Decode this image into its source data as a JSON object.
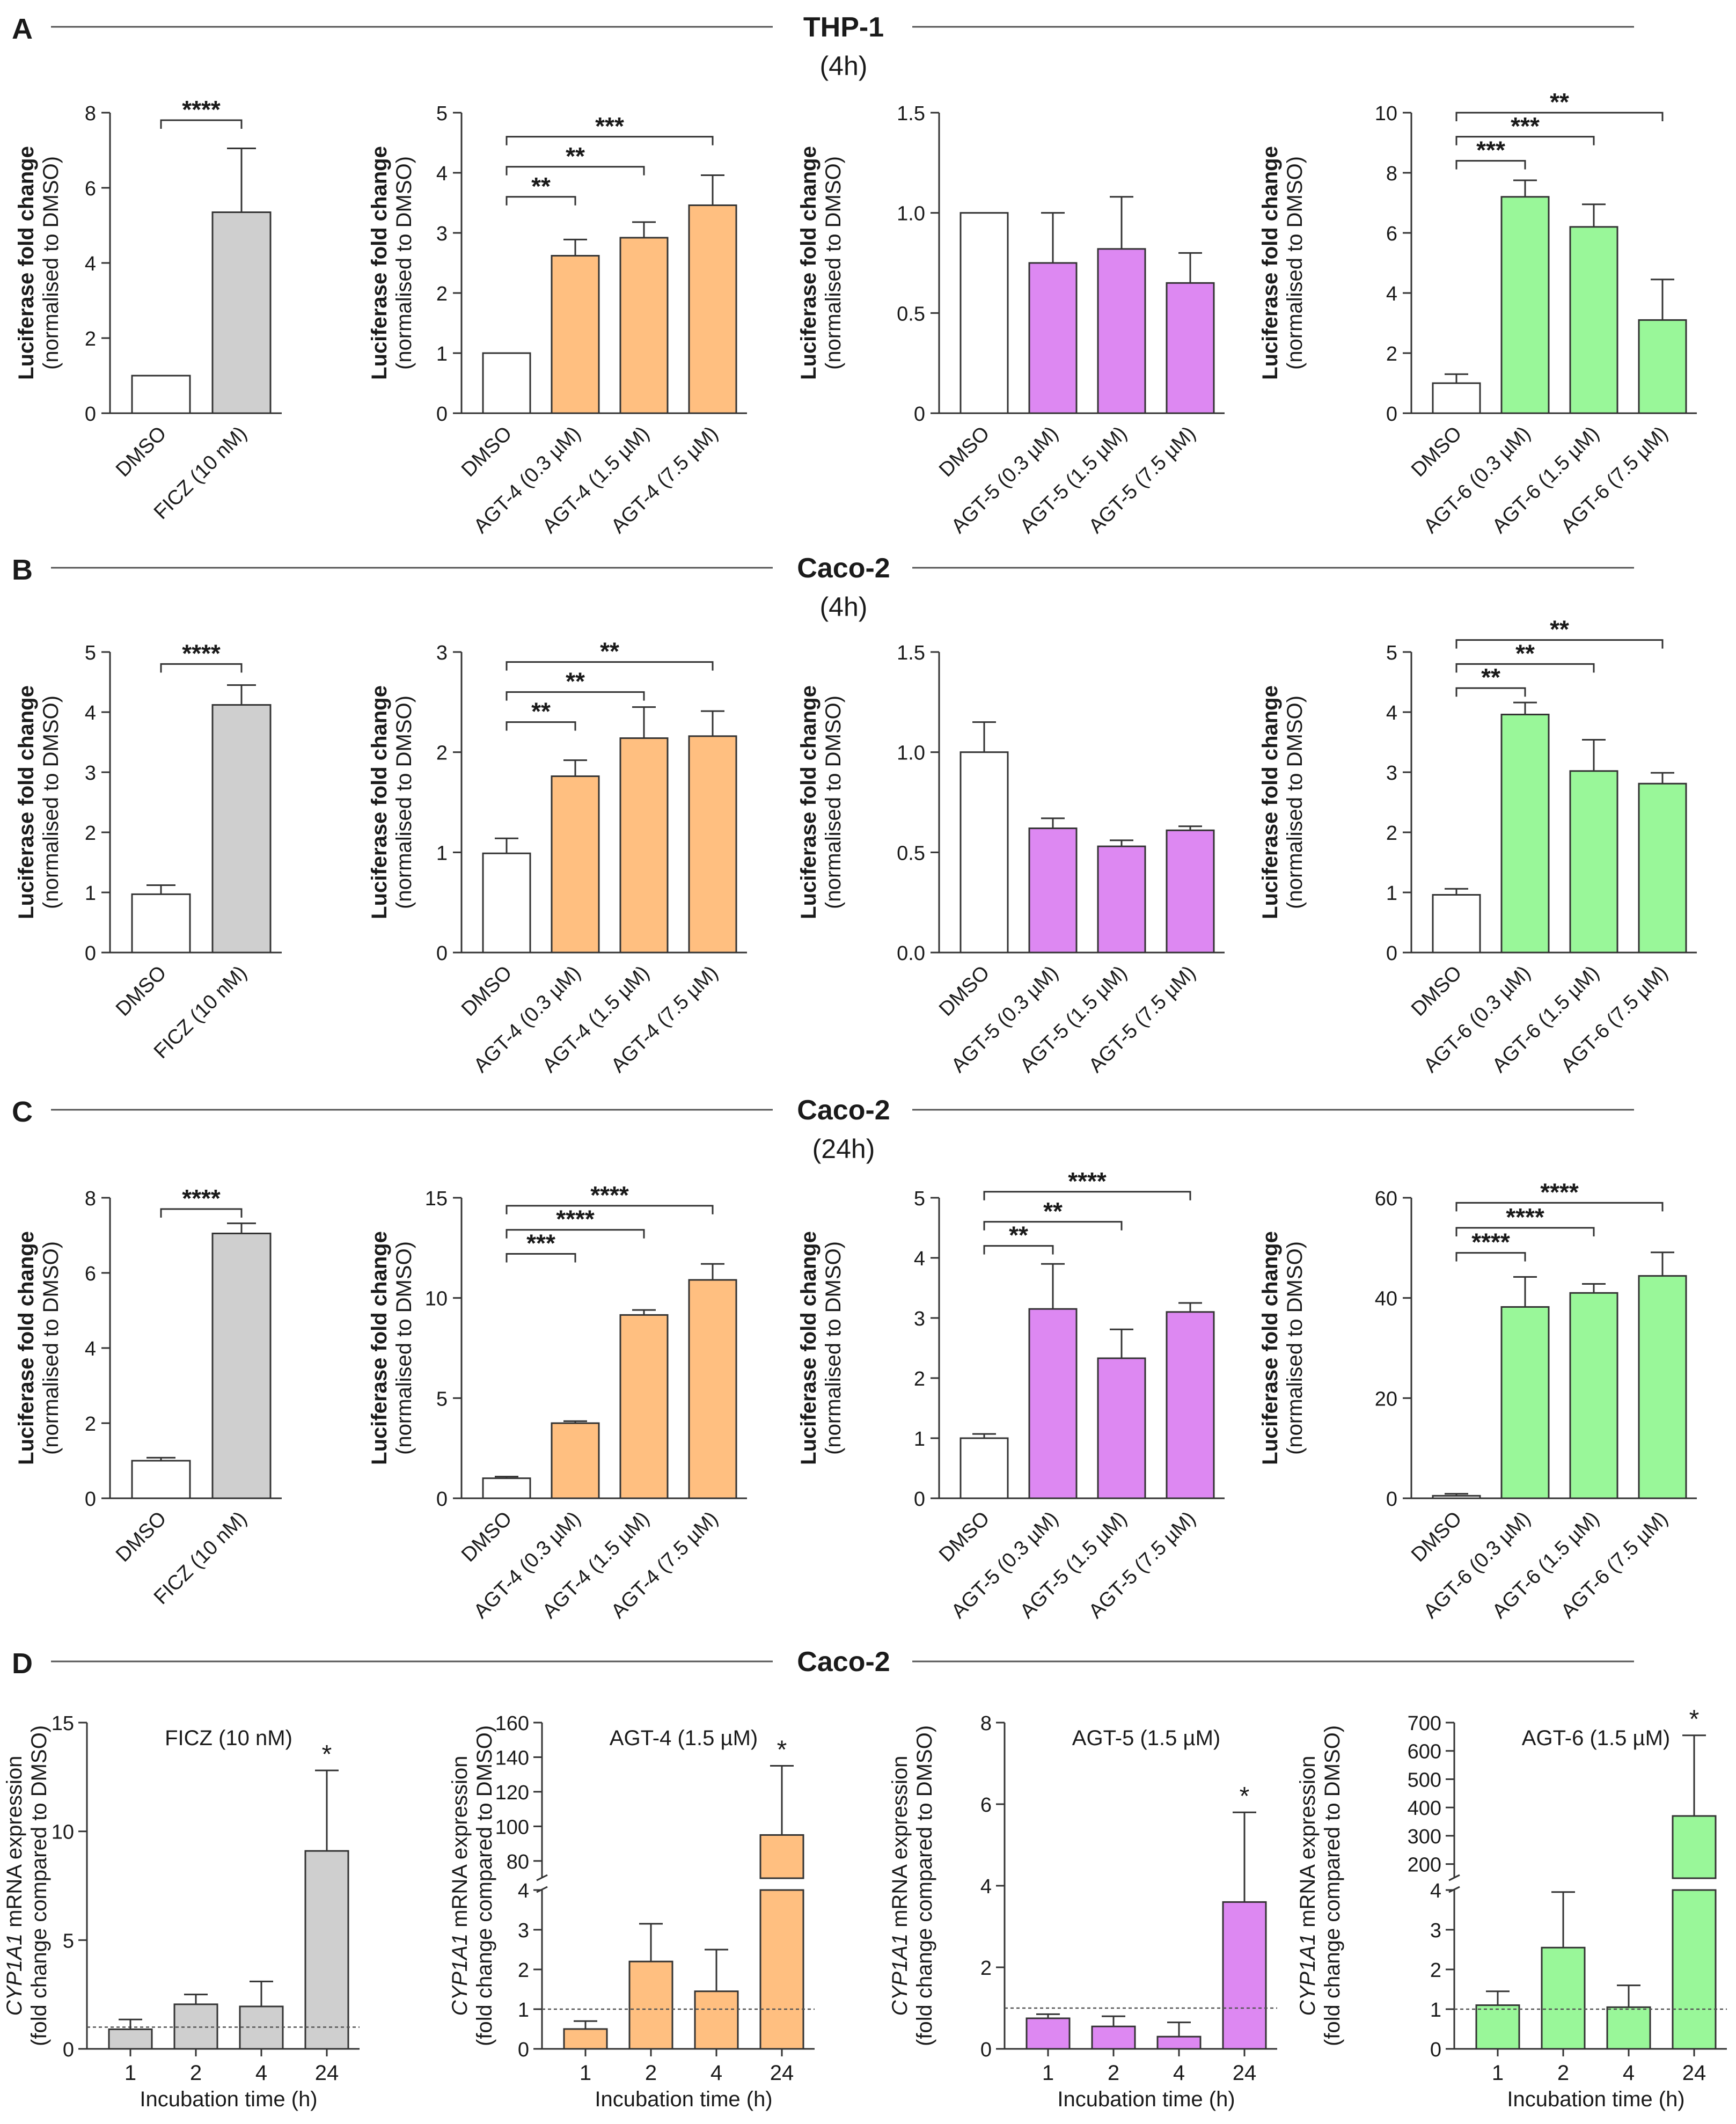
{
  "figure": {
    "rows": [
      {
        "letter": "A",
        "title": "THP-1",
        "subtitle": "(4h)"
      },
      {
        "letter": "B",
        "title": "Caco-2",
        "subtitle": "(4h)"
      },
      {
        "letter": "C",
        "title": "Caco-2",
        "subtitle": "(24h)"
      },
      {
        "letter": "D",
        "title": "Caco-2",
        "subtitle": ""
      }
    ],
    "ylabel_line1": "Luciferase fold change",
    "ylabel_line2": "(normalised to DMSO)",
    "d_ylabel_line1_gene": "CYP1A1",
    "d_ylabel_line1_rest": " mRNA expression",
    "d_ylabel_line2": "(fold change compared to DMSO)",
    "d_xlabel": "Incubation time (h)",
    "colors": {
      "white": "#ffffff",
      "gray": "#cfcfcf",
      "orange": "#ffbf80",
      "purple": "#dd88f2",
      "green": "#99f799",
      "stroke": "#333333"
    }
  },
  "chart_data": [
    {
      "id": "A1",
      "type": "bar",
      "categories": [
        "DMSO",
        "FICZ (10 nM)"
      ],
      "values": [
        1.0,
        5.35
      ],
      "errors": [
        0,
        1.7
      ],
      "fills": [
        "white",
        "gray"
      ],
      "ylim": [
        0,
        8
      ],
      "yticks": [
        "0",
        "2",
        "4",
        "6",
        "8"
      ],
      "tick_values": [
        0,
        2,
        4,
        6,
        8
      ],
      "ylabel": "Luciferase fold change (normalised to DMSO)",
      "sig": [
        {
          "from": 0,
          "to": 1,
          "label": "****",
          "y": 7.8
        }
      ]
    },
    {
      "id": "A2",
      "type": "bar",
      "categories": [
        "DMSO",
        "AGT-4 (0.3 µM)",
        "AGT-4 (1.5 µM)",
        "AGT-4 (7.5 µM)"
      ],
      "values": [
        1.0,
        2.62,
        2.92,
        3.46
      ],
      "errors": [
        0,
        0.27,
        0.26,
        0.5
      ],
      "fills": [
        "white",
        "orange",
        "orange",
        "orange"
      ],
      "ylim": [
        0,
        5
      ],
      "yticks": [
        "0",
        "1",
        "2",
        "3",
        "4",
        "5"
      ],
      "tick_values": [
        0,
        1,
        2,
        3,
        4,
        5
      ],
      "ylabel": "Luciferase fold change (normalised to DMSO)",
      "sig": [
        {
          "from": 0,
          "to": 1,
          "label": "**",
          "y": 3.6
        },
        {
          "from": 0,
          "to": 2,
          "label": "**",
          "y": 4.1
        },
        {
          "from": 0,
          "to": 3,
          "label": "***",
          "y": 4.6
        }
      ]
    },
    {
      "id": "A3",
      "type": "bar",
      "categories": [
        "DMSO",
        "AGT-5 (0.3 µM)",
        "AGT-5 (1.5 µM)",
        "AGT-5 (7.5 µM)"
      ],
      "values": [
        1.0,
        0.75,
        0.82,
        0.65
      ],
      "errors": [
        0,
        0.25,
        0.26,
        0.15
      ],
      "fills": [
        "white",
        "purple",
        "purple",
        "purple"
      ],
      "ylim": [
        0,
        1.5
      ],
      "yticks": [
        "0",
        "0.5",
        "1.0",
        "1.5"
      ],
      "tick_values": [
        0,
        0.5,
        1.0,
        1.5
      ],
      "ylabel": "Luciferase fold change (normalised to DMSO)",
      "sig": []
    },
    {
      "id": "A4",
      "type": "bar",
      "categories": [
        "DMSO",
        "AGT-6 (0.3 µM)",
        "AGT-6 (1.5 µM)",
        "AGT-6 (7.5 µM)"
      ],
      "values": [
        1.0,
        7.2,
        6.2,
        3.1
      ],
      "errors": [
        0.3,
        0.55,
        0.75,
        1.35
      ],
      "fills": [
        "white",
        "green",
        "green",
        "green"
      ],
      "ylim": [
        0,
        10
      ],
      "yticks": [
        "0",
        "2",
        "4",
        "6",
        "8",
        "10"
      ],
      "tick_values": [
        0,
        2,
        4,
        6,
        8,
        10
      ],
      "ylabel": "Luciferase fold change (normalised to DMSO)",
      "sig": [
        {
          "from": 0,
          "to": 1,
          "label": "***",
          "y": 8.4
        },
        {
          "from": 0,
          "to": 2,
          "label": "***",
          "y": 9.2
        },
        {
          "from": 0,
          "to": 3,
          "label": "**",
          "y": 10.0
        }
      ]
    },
    {
      "id": "B1",
      "type": "bar",
      "categories": [
        "DMSO",
        "FICZ (10 nM)"
      ],
      "values": [
        0.97,
        4.12
      ],
      "errors": [
        0.15,
        0.33
      ],
      "fills": [
        "white",
        "gray"
      ],
      "ylim": [
        0,
        5
      ],
      "yticks": [
        "0",
        "1",
        "2",
        "3",
        "4",
        "5"
      ],
      "tick_values": [
        0,
        1,
        2,
        3,
        4,
        5
      ],
      "ylabel": "Luciferase fold change (normalised to DMSO)",
      "sig": [
        {
          "from": 0,
          "to": 1,
          "label": "****",
          "y": 4.8
        }
      ]
    },
    {
      "id": "B2",
      "type": "bar",
      "categories": [
        "DMSO",
        "AGT-4 (0.3 µM)",
        "AGT-4 (1.5 µM)",
        "AGT-4 (7.5 µM)"
      ],
      "values": [
        0.99,
        1.76,
        2.14,
        2.16
      ],
      "errors": [
        0.15,
        0.16,
        0.31,
        0.25
      ],
      "fills": [
        "white",
        "orange",
        "orange",
        "orange"
      ],
      "ylim": [
        0,
        3
      ],
      "yticks": [
        "0",
        "1",
        "2",
        "3"
      ],
      "tick_values": [
        0,
        1,
        2,
        3
      ],
      "ylabel": "Luciferase fold change (normalised to DMSO)",
      "sig": [
        {
          "from": 0,
          "to": 1,
          "label": "**",
          "y": 2.3
        },
        {
          "from": 0,
          "to": 2,
          "label": "**",
          "y": 2.6
        },
        {
          "from": 0,
          "to": 3,
          "label": "**",
          "y": 2.9
        }
      ]
    },
    {
      "id": "B3",
      "type": "bar",
      "categories": [
        "DMSO",
        "AGT-5 (0.3 µM)",
        "AGT-5 (1.5 µM)",
        "AGT-5 (7.5 µM)"
      ],
      "values": [
        1.0,
        0.62,
        0.53,
        0.61
      ],
      "errors": [
        0.15,
        0.05,
        0.03,
        0.02
      ],
      "fills": [
        "white",
        "purple",
        "purple",
        "purple"
      ],
      "ylim": [
        0,
        1.5
      ],
      "yticks": [
        "0.0",
        "0.5",
        "1.0",
        "1.5"
      ],
      "tick_values": [
        0,
        0.5,
        1.0,
        1.5
      ],
      "ylabel": "Luciferase fold change (normalised to DMSO)",
      "sig": []
    },
    {
      "id": "B4",
      "type": "bar",
      "categories": [
        "DMSO",
        "AGT-6 (0.3 µM)",
        "AGT-6 (1.5 µM)",
        "AGT-6 (7.5 µM)"
      ],
      "values": [
        0.96,
        3.96,
        3.02,
        2.81
      ],
      "errors": [
        0.1,
        0.2,
        0.52,
        0.18
      ],
      "fills": [
        "white",
        "green",
        "green",
        "green"
      ],
      "ylim": [
        0,
        5
      ],
      "yticks": [
        "0",
        "1",
        "2",
        "3",
        "4",
        "5"
      ],
      "tick_values": [
        0,
        1,
        2,
        3,
        4,
        5
      ],
      "ylabel": "Luciferase fold change (normalised to DMSO)",
      "sig": [
        {
          "from": 0,
          "to": 1,
          "label": "**",
          "y": 4.4
        },
        {
          "from": 0,
          "to": 2,
          "label": "**",
          "y": 4.8
        },
        {
          "from": 0,
          "to": 3,
          "label": "**",
          "y": 5.2
        }
      ]
    },
    {
      "id": "C1",
      "type": "bar",
      "categories": [
        "DMSO",
        "FICZ (10 nM)"
      ],
      "values": [
        1.0,
        7.05
      ],
      "errors": [
        0.08,
        0.27
      ],
      "fills": [
        "white",
        "gray"
      ],
      "ylim": [
        0,
        8
      ],
      "yticks": [
        "0",
        "2",
        "4",
        "6",
        "8"
      ],
      "tick_values": [
        0,
        2,
        4,
        6,
        8
      ],
      "ylabel": "Luciferase fold change (normalised to DMSO)",
      "sig": [
        {
          "from": 0,
          "to": 1,
          "label": "****",
          "y": 7.7
        }
      ]
    },
    {
      "id": "C2",
      "type": "bar",
      "categories": [
        "DMSO",
        "AGT-4 (0.3 µM)",
        "AGT-4 (1.5 µM)",
        "AGT-4 (7.5 µM)"
      ],
      "values": [
        1.0,
        3.75,
        9.15,
        10.9
      ],
      "errors": [
        0.08,
        0.1,
        0.25,
        0.8
      ],
      "fills": [
        "white",
        "orange",
        "orange",
        "orange"
      ],
      "ylim": [
        0,
        15
      ],
      "yticks": [
        "0",
        "5",
        "10",
        "15"
      ],
      "tick_values": [
        0,
        5,
        10,
        15
      ],
      "ylabel": "Luciferase fold change (normalised to DMSO)",
      "sig": [
        {
          "from": 0,
          "to": 1,
          "label": "***",
          "y": 12.2
        },
        {
          "from": 0,
          "to": 2,
          "label": "****",
          "y": 13.4
        },
        {
          "from": 0,
          "to": 3,
          "label": "****",
          "y": 14.6
        }
      ]
    },
    {
      "id": "C3",
      "type": "bar",
      "categories": [
        "DMSO",
        "AGT-5 (0.3 µM)",
        "AGT-5 (1.5 µM)",
        "AGT-5 (7.5 µM)"
      ],
      "values": [
        1.0,
        3.15,
        2.33,
        3.1
      ],
      "errors": [
        0.07,
        0.75,
        0.48,
        0.15
      ],
      "fills": [
        "white",
        "purple",
        "purple",
        "purple"
      ],
      "ylim": [
        0,
        5
      ],
      "yticks": [
        "0",
        "1",
        "2",
        "3",
        "4",
        "5"
      ],
      "tick_values": [
        0,
        1,
        2,
        3,
        4,
        5
      ],
      "ylabel": "Luciferase fold change (normalised to DMSO)",
      "sig": [
        {
          "from": 0,
          "to": 1,
          "label": "**",
          "y": 4.2
        },
        {
          "from": 0,
          "to": 2,
          "label": "**",
          "y": 4.6
        },
        {
          "from": 0,
          "to": 3,
          "label": "****",
          "y": 5.1
        }
      ]
    },
    {
      "id": "C4",
      "type": "bar",
      "categories": [
        "DMSO",
        "AGT-6 (0.3 µM)",
        "AGT-6 (1.5 µM)",
        "AGT-6 (7.5 µM)"
      ],
      "values": [
        0.5,
        38.2,
        41.0,
        44.4
      ],
      "errors": [
        0.4,
        6.0,
        1.8,
        4.7
      ],
      "fills": [
        "white",
        "green",
        "green",
        "green"
      ],
      "ylim": [
        0,
        60
      ],
      "yticks": [
        "0",
        "20",
        "40",
        "60"
      ],
      "tick_values": [
        0,
        20,
        40,
        60
      ],
      "ylabel": "Luciferase fold change (normalised to DMSO)",
      "sig": [
        {
          "from": 0,
          "to": 1,
          "label": "****",
          "y": 49
        },
        {
          "from": 0,
          "to": 2,
          "label": "****",
          "y": 54
        },
        {
          "from": 0,
          "to": 3,
          "label": "****",
          "y": 59
        }
      ]
    },
    {
      "id": "D1",
      "type": "bar",
      "title": "FICZ (10 nM)",
      "categories": [
        "1",
        "2",
        "4",
        "24"
      ],
      "values": [
        0.9,
        2.05,
        1.95,
        9.1
      ],
      "errors": [
        0.45,
        0.45,
        1.15,
        3.7
      ],
      "fill": "gray",
      "ylim": [
        0,
        15
      ],
      "yticks": [
        "0",
        "5",
        "10",
        "15"
      ],
      "tick_values": [
        0,
        5,
        10,
        15
      ],
      "ref_line": 1,
      "star": {
        "index": 3,
        "label": "*"
      },
      "xlabel": "Incubation time (h)",
      "ylabel": "CYP1A1 mRNA expression (fold change compared to DMSO)"
    },
    {
      "id": "D2",
      "type": "bar",
      "title": "AGT-4 (1.5 µM)",
      "categories": [
        "1",
        "2",
        "4",
        "24"
      ],
      "values": [
        0.5,
        2.2,
        1.45,
        95
      ],
      "errors": [
        0.2,
        0.95,
        1.05,
        40
      ],
      "fill": "orange",
      "broken_axis": {
        "lower": [
          0,
          4
        ],
        "upper": [
          70,
          160
        ]
      },
      "yticks_lower": [
        "0",
        "1",
        "2",
        "3",
        "4"
      ],
      "yticks_upper": [
        "80",
        "100",
        "120",
        "140",
        "160"
      ],
      "tick_values_lower": [
        0,
        1,
        2,
        3,
        4
      ],
      "tick_values_upper": [
        80,
        100,
        120,
        140,
        160
      ],
      "ref_line": 1,
      "star": {
        "index": 3,
        "label": "*"
      },
      "xlabel": "Incubation time (h)",
      "ylabel": "CYP1A1 mRNA expression (fold change compared to DMSO)"
    },
    {
      "id": "D3",
      "type": "bar",
      "title": "AGT-5 (1.5 µM)",
      "categories": [
        "1",
        "2",
        "4",
        "24"
      ],
      "values": [
        0.75,
        0.55,
        0.3,
        3.6
      ],
      "errors": [
        0.1,
        0.25,
        0.35,
        2.2
      ],
      "fill": "purple",
      "ylim": [
        0,
        8
      ],
      "yticks": [
        "0",
        "2",
        "4",
        "6",
        "8"
      ],
      "tick_values": [
        0,
        2,
        4,
        6,
        8
      ],
      "ref_line": 1,
      "star": {
        "index": 3,
        "label": "*"
      },
      "xlabel": "Incubation time (h)",
      "ylabel": "CYP1A1 mRNA expression (fold change compared to DMSO)"
    },
    {
      "id": "D4",
      "type": "bar",
      "title": "AGT-6 (1.5 µM)",
      "categories": [
        "1",
        "2",
        "4",
        "24"
      ],
      "values": [
        1.1,
        2.55,
        1.05,
        370
      ],
      "errors": [
        0.35,
        1.4,
        0.55,
        285
      ],
      "fill": "green",
      "broken_axis": {
        "lower": [
          0,
          4
        ],
        "upper": [
          150,
          700
        ]
      },
      "yticks_lower": [
        "0",
        "1",
        "2",
        "3",
        "4"
      ],
      "yticks_upper": [
        "200",
        "300",
        "400",
        "500",
        "600",
        "700"
      ],
      "tick_values_lower": [
        0,
        1,
        2,
        3,
        4
      ],
      "tick_values_upper": [
        200,
        300,
        400,
        500,
        600,
        700
      ],
      "ref_line": 1,
      "star": {
        "index": 3,
        "label": "*"
      },
      "xlabel": "Incubation time (h)",
      "ylabel": "CYP1A1 mRNA expression (fold change compared to DMSO)"
    }
  ]
}
